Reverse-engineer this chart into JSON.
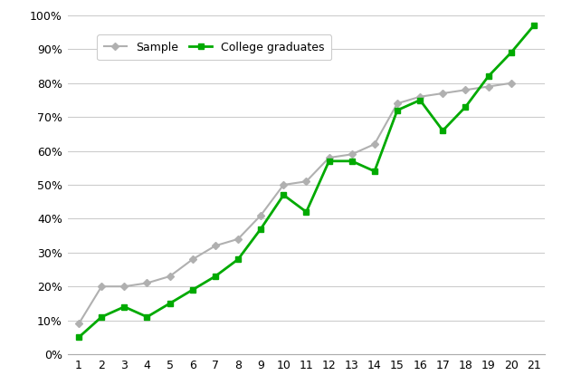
{
  "x": [
    1,
    2,
    3,
    4,
    5,
    6,
    7,
    8,
    9,
    10,
    11,
    12,
    13,
    14,
    15,
    16,
    17,
    18,
    19,
    20,
    21
  ],
  "sample": [
    0.09,
    0.2,
    0.2,
    0.21,
    0.23,
    0.28,
    0.32,
    0.34,
    0.41,
    0.5,
    0.51,
    0.58,
    0.59,
    0.62,
    0.74,
    0.76,
    0.77,
    0.78,
    0.79,
    0.8,
    null
  ],
  "college": [
    0.05,
    0.11,
    0.14,
    0.11,
    0.15,
    0.19,
    0.23,
    0.28,
    0.37,
    0.47,
    0.42,
    0.57,
    0.57,
    0.54,
    0.72,
    0.75,
    0.66,
    0.73,
    0.82,
    0.89,
    0.97
  ],
  "sample_color": "#b0b0b0",
  "college_color": "#00aa00",
  "sample_label": "Sample",
  "college_label": "College graduates",
  "ylim": [
    0,
    1.0
  ],
  "xlim": [
    0.5,
    21.5
  ],
  "yticks": [
    0.0,
    0.1,
    0.2,
    0.3,
    0.4,
    0.5,
    0.6,
    0.7,
    0.8,
    0.9,
    1.0
  ],
  "xticks": [
    1,
    2,
    3,
    4,
    5,
    6,
    7,
    8,
    9,
    10,
    11,
    12,
    13,
    14,
    15,
    16,
    17,
    18,
    19,
    20,
    21
  ],
  "background_color": "#ffffff",
  "grid_color": "#cccccc",
  "figsize": [
    6.21,
    4.25
  ],
  "dpi": 100
}
